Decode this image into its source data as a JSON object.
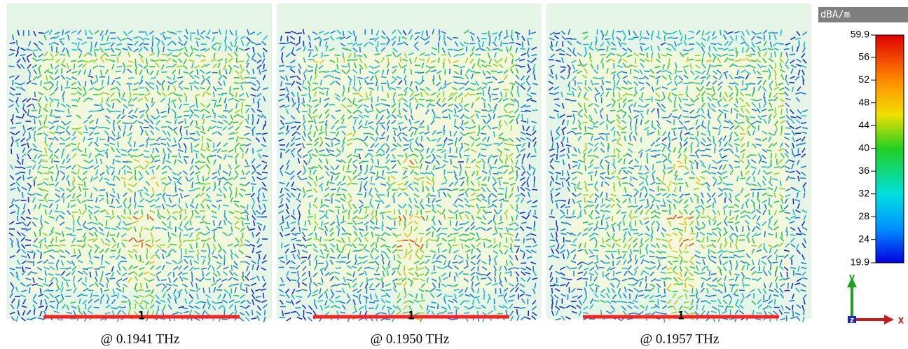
{
  "panels": [
    {
      "caption": "@ 0.1941 THz",
      "port": "1"
    },
    {
      "caption": "@ 0.1950 THz",
      "port": "1"
    },
    {
      "caption": "@ 0.1957 THz",
      "port": "1"
    }
  ],
  "colorbar": {
    "unit": "dBA/m",
    "ticks": [
      "59.9",
      "56",
      "52",
      "48",
      "44",
      "40",
      "36",
      "32",
      "28",
      "24",
      "19.9"
    ]
  },
  "axes": {
    "y": "y",
    "x": "x",
    "z": "z"
  }
}
